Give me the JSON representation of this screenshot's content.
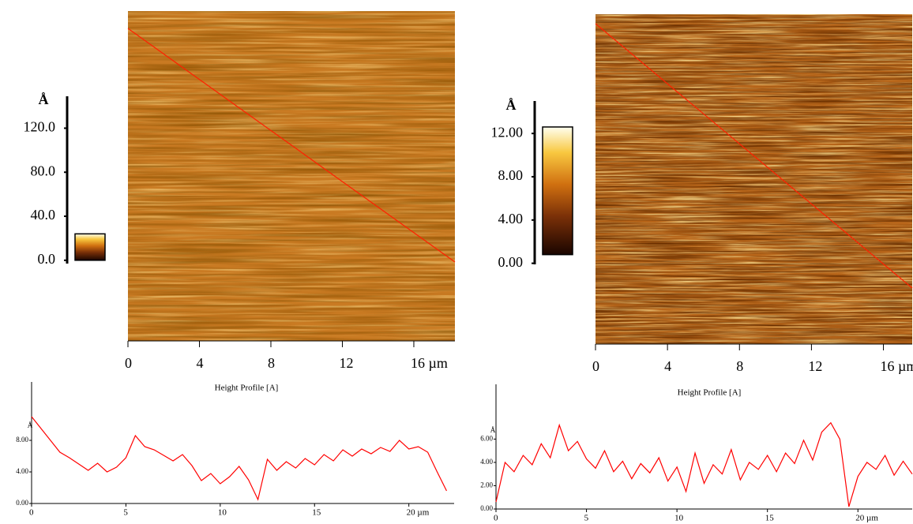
{
  "chart_data": [
    {
      "type": "afm-image",
      "xlim": [
        0,
        18.3
      ],
      "xticks": [
        0,
        4,
        8,
        12,
        {
          "value": 16,
          "label": "16 µm"
        }
      ],
      "colorbar_unit": "Å",
      "clim": [
        -3,
        149
      ],
      "colorbar_ticks": [
        {
          "value": 0,
          "label": "0.0"
        },
        {
          "value": 40,
          "label": "40.0"
        },
        {
          "value": 80,
          "label": "80.0"
        },
        {
          "value": 120,
          "label": "120.0"
        }
      ],
      "colorbar_range": [
        0,
        24
      ],
      "color": "#c97a22"
    },
    {
      "type": "afm-image",
      "xlim": [
        0,
        17.6
      ],
      "xticks": [
        0,
        4,
        8,
        12,
        {
          "value": 16,
          "label": "16 µm"
        }
      ],
      "colorbar_unit": "Å",
      "clim": [
        -0.1,
        15
      ],
      "colorbar_ticks": [
        {
          "value": 0,
          "label": "0.00"
        },
        {
          "value": 4,
          "label": "4.00"
        },
        {
          "value": 8,
          "label": "8.00"
        },
        {
          "value": 12,
          "label": "12.00"
        }
      ],
      "colorbar_range": [
        0.8,
        12.6
      ],
      "color": "#b8661a"
    },
    {
      "type": "line",
      "title": "Height Profile [A]",
      "ylabel": "Å",
      "color": "#ff0000",
      "xlim": [
        0,
        22.4
      ],
      "xticks": [
        0,
        5,
        10,
        15,
        {
          "value": 20,
          "label": "20 µm"
        }
      ],
      "ylim": [
        0,
        15.4
      ],
      "yticks": [
        {
          "value": 0,
          "label": "0.00"
        },
        {
          "value": 4,
          "label": "4.00"
        },
        {
          "value": 8,
          "label": "8.00"
        }
      ],
      "x": [
        0,
        0.5,
        1,
        1.5,
        2,
        2.5,
        3,
        3.5,
        4,
        4.5,
        5,
        5.5,
        6,
        6.5,
        7,
        7.5,
        8,
        8.5,
        9,
        9.5,
        10,
        10.5,
        11,
        11.5,
        12,
        12.5,
        13,
        13.5,
        14,
        14.5,
        15,
        15.5,
        16,
        16.5,
        17,
        17.5,
        18,
        18.5,
        19,
        19.5,
        20,
        20.5,
        21,
        21.5,
        22
      ],
      "values": [
        11.0,
        9.5,
        8.0,
        6.5,
        5.8,
        5.0,
        4.2,
        5.1,
        4.0,
        4.6,
        5.8,
        8.6,
        7.2,
        6.8,
        6.1,
        5.4,
        6.2,
        4.8,
        2.9,
        3.8,
        2.5,
        3.4,
        4.7,
        3.0,
        0.5,
        5.6,
        4.2,
        5.3,
        4.5,
        5.7,
        4.9,
        6.2,
        5.4,
        6.8,
        6.0,
        6.9,
        6.3,
        7.1,
        6.6,
        8.0,
        6.9,
        7.2,
        6.5,
        4.0,
        1.6
      ]
    },
    {
      "type": "line",
      "title": "Height Profile [A]",
      "ylabel": "Å",
      "color": "#ff0000",
      "xlim": [
        0,
        23
      ],
      "xticks": [
        0,
        5,
        10,
        15,
        {
          "value": 20,
          "label": "20 µm"
        }
      ],
      "ylim": [
        0,
        10.7
      ],
      "yticks": [
        {
          "value": 0,
          "label": "0.00"
        },
        {
          "value": 2,
          "label": "2.00"
        },
        {
          "value": 4,
          "label": "4.00"
        },
        {
          "value": 6,
          "label": "6.00"
        }
      ],
      "x": [
        0,
        0.5,
        1,
        1.5,
        2,
        2.5,
        3,
        3.5,
        4,
        4.5,
        5,
        5.5,
        6,
        6.5,
        7,
        7.5,
        8,
        8.5,
        9,
        9.5,
        10,
        10.5,
        11,
        11.5,
        12,
        12.5,
        13,
        13.5,
        14,
        14.5,
        15,
        15.5,
        16,
        16.5,
        17,
        17.5,
        18,
        18.5,
        19,
        19.5,
        20,
        20.5,
        21,
        21.5,
        22,
        22.5,
        23
      ],
      "values": [
        0.6,
        4.0,
        3.2,
        4.6,
        3.8,
        5.6,
        4.4,
        7.2,
        5.0,
        5.8,
        4.3,
        3.5,
        5.0,
        3.2,
        4.1,
        2.6,
        3.9,
        3.1,
        4.4,
        2.4,
        3.6,
        1.5,
        4.8,
        2.2,
        3.8,
        3.0,
        5.1,
        2.5,
        4.0,
        3.4,
        4.6,
        3.2,
        4.8,
        3.9,
        5.9,
        4.2,
        6.6,
        7.4,
        6.0,
        0.2,
        2.8,
        4.0,
        3.4,
        4.6,
        2.9,
        4.1,
        3.0
      ]
    }
  ]
}
